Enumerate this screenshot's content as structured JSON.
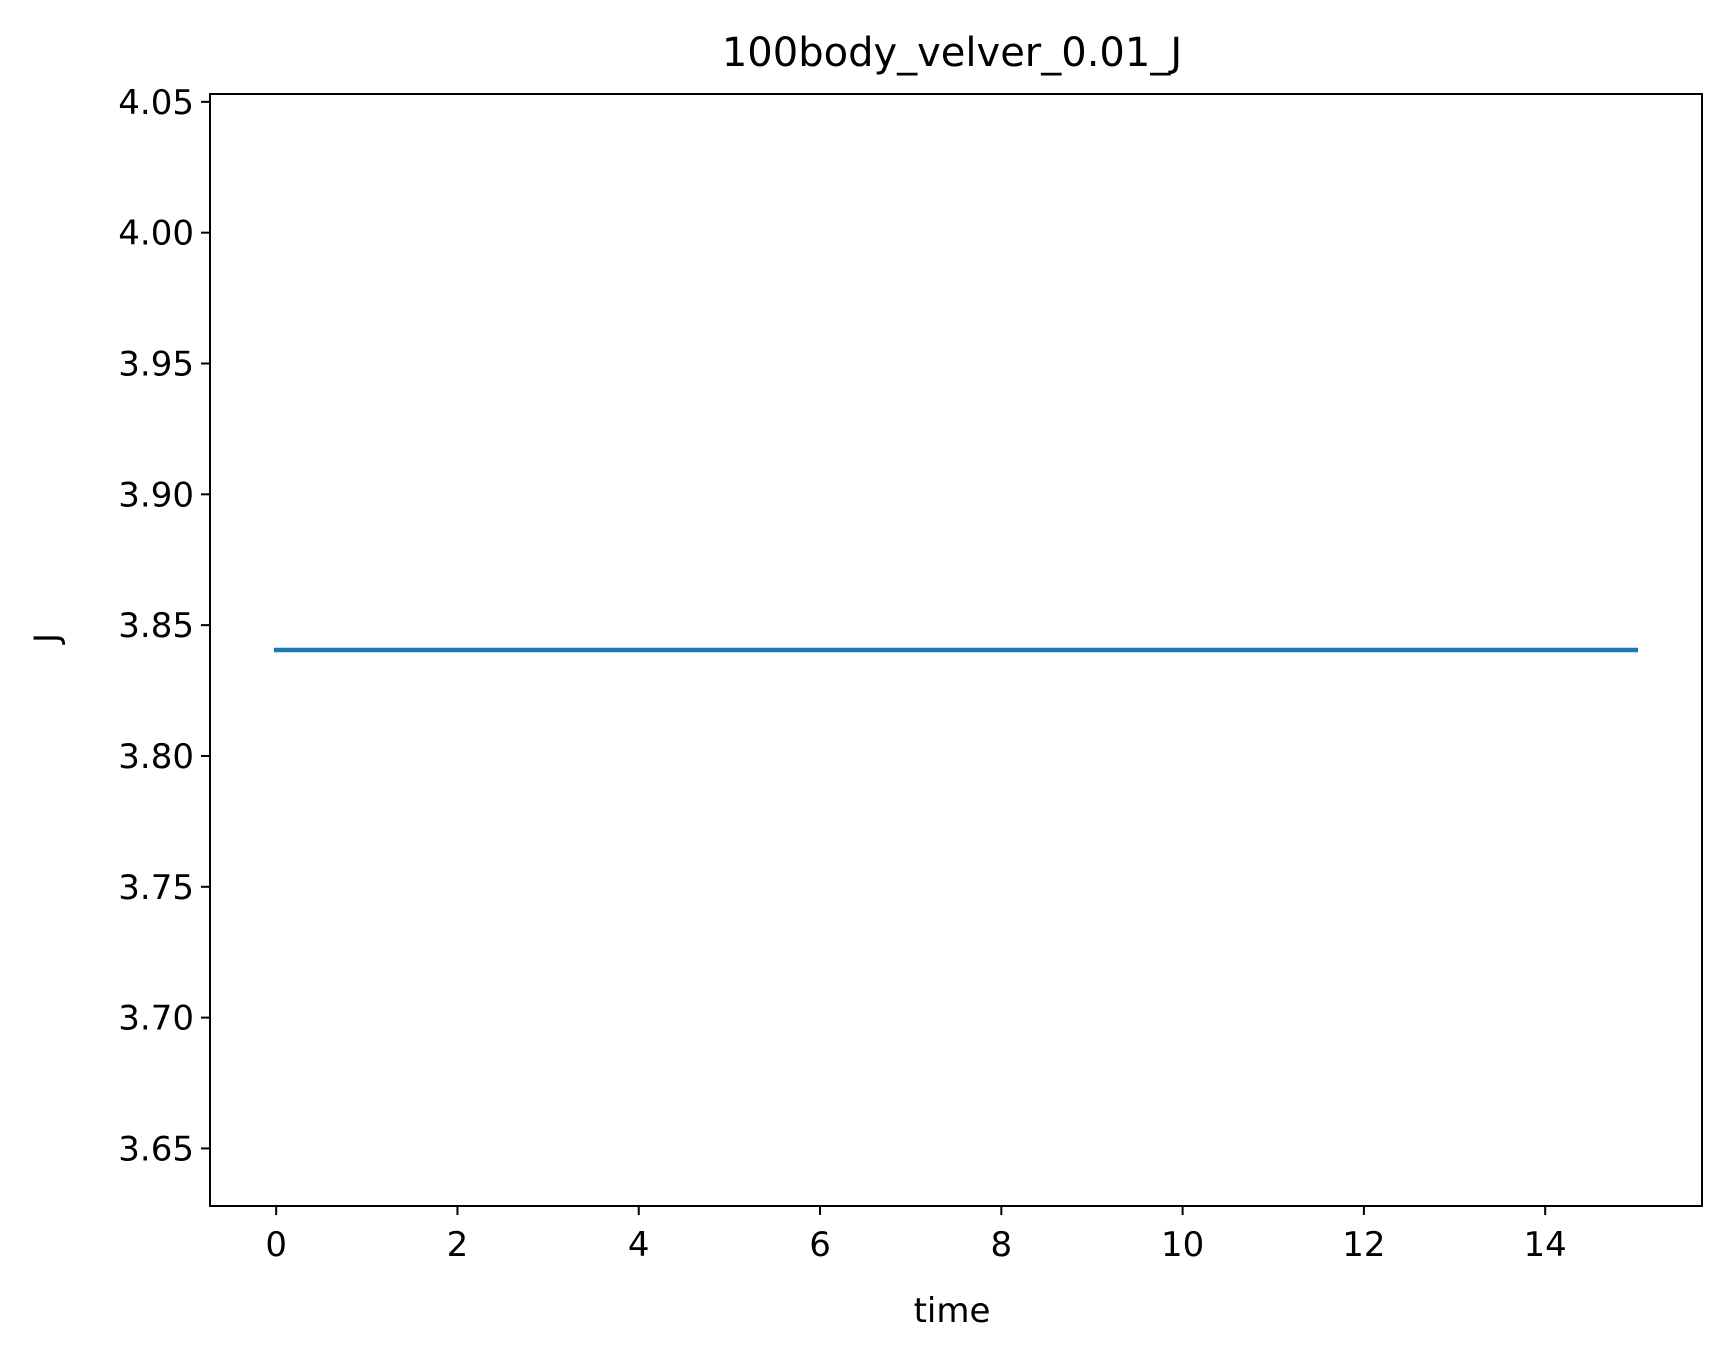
{
  "chart_data": {
    "type": "line",
    "title": "100body_velver_0.01_J",
    "xlabel": "time",
    "ylabel": "J",
    "xlim": [
      -0.73,
      15.73
    ],
    "ylim": [
      3.628,
      4.053
    ],
    "xticks": [
      0,
      2,
      4,
      6,
      8,
      10,
      12,
      14
    ],
    "xtick_labels": [
      "0",
      "2",
      "4",
      "6",
      "8",
      "10",
      "12",
      "14"
    ],
    "yticks": [
      3.65,
      3.7,
      3.75,
      3.8,
      3.85,
      3.9,
      3.95,
      4.0,
      4.05
    ],
    "ytick_labels": [
      "3.65",
      "3.70",
      "3.75",
      "3.80",
      "3.85",
      "3.90",
      "3.95",
      "4.00",
      "4.05"
    ],
    "grid": false,
    "series": [
      {
        "color": "#1f77b4",
        "x": [
          0,
          15
        ],
        "y": [
          3.8405,
          3.8405
        ]
      }
    ]
  }
}
